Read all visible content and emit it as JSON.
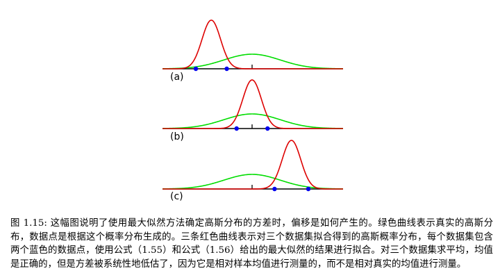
{
  "figure": {
    "panels": [
      {
        "label": "(a)",
        "points": [
          -2.0,
          -0.9
        ],
        "fit_mean": -1.45,
        "fit_sd": 0.33
      },
      {
        "label": "(b)",
        "points": [
          -0.55,
          0.55
        ],
        "fit_mean": 0.0,
        "fit_sd": 0.33
      },
      {
        "label": "(c)",
        "points": [
          0.8,
          2.0
        ],
        "fit_mean": 1.4,
        "fit_sd": 0.33
      }
    ],
    "true_distribution": {
      "mean": 0.0,
      "sd": 1.0
    },
    "colors": {
      "true_curve": "#00dd00",
      "fit_curve": "#dd0000",
      "points": "#0000ee",
      "axis": "#000000"
    }
  },
  "caption": "图 1.15: 这幅图说明了使用最大似然方法确定高斯分布的方差时，偏移是如何产生的。绿色曲线表示真实的高斯分布，数据点是根据这个概率分布生成的。三条红色曲线表示对三个数据集拟合得到的高斯概率分布，每个数据集包含两个蓝色的数据点，使用公式（1.55）和公式（1.56）给出的最大似然的结果进行拟合。对三个数据集求平均，均值是正确的，但是方差被系统性地低估了，因为它是相对样本均值进行测量的，而不是相对真实的均值进行测量。"
}
